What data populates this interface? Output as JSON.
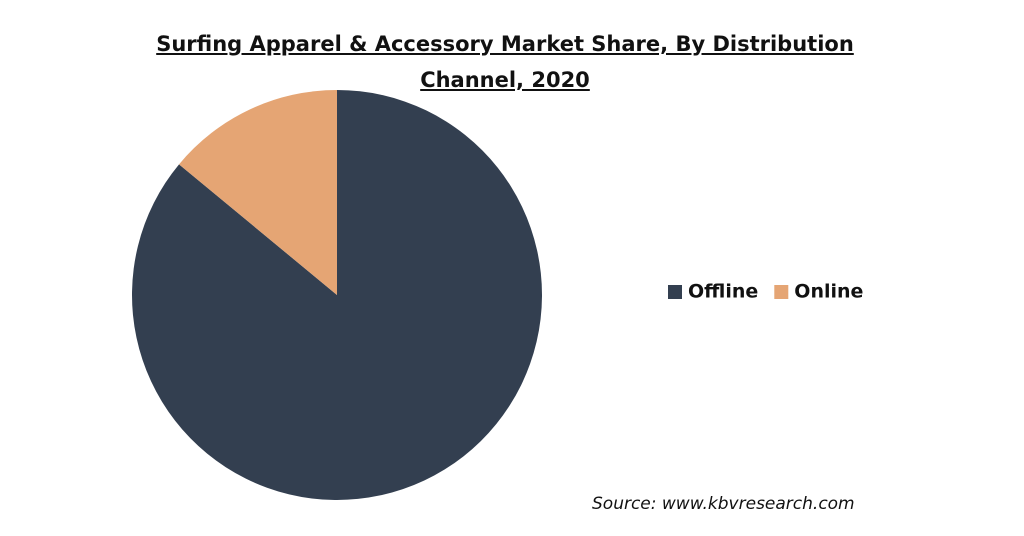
{
  "chart_data": {
    "type": "pie",
    "title": "Surfing Apparel & Accessory Market Share, By Distribution Channel, 2020",
    "categories": [
      "Offline",
      "Online"
    ],
    "values": [
      86,
      14
    ],
    "colors": [
      "#333f50",
      "#e5a574"
    ],
    "legend": "right",
    "source": "Source: www.kbvresearch.com"
  }
}
